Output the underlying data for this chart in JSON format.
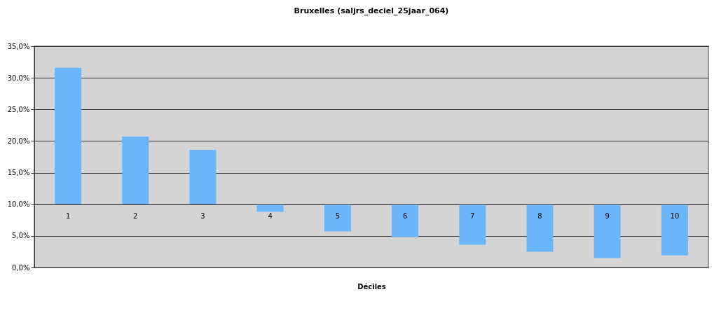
{
  "chart_data": {
    "type": "bar",
    "title": "Bruxelles (saljrs_deciel_25jaar_064)",
    "xlabel": "Déciles",
    "categories": [
      "1",
      "2",
      "3",
      "4",
      "5",
      "6",
      "7",
      "8",
      "9",
      "10"
    ],
    "base": [
      10,
      10,
      10,
      10,
      10,
      10,
      10,
      10,
      10,
      10
    ],
    "values": [
      21.6,
      10.7,
      8.6,
      -1.2,
      -4.3,
      -5.2,
      -6.4,
      -7.5,
      -8.5,
      -8.1
    ],
    "color": "#6bb5f8",
    "ylim": [
      0,
      35
    ],
    "yticks": [
      {
        "value": 0,
        "label": "0,0%"
      },
      {
        "value": 5,
        "label": "5,0%"
      },
      {
        "value": 10,
        "label": "10,0%"
      },
      {
        "value": 15,
        "label": "15,0%"
      },
      {
        "value": 20,
        "label": "20,0%"
      },
      {
        "value": 25,
        "label": "25,0%"
      },
      {
        "value": 30,
        "label": "30,0%"
      },
      {
        "value": 35,
        "label": "35,0%"
      }
    ],
    "grid": "y"
  }
}
